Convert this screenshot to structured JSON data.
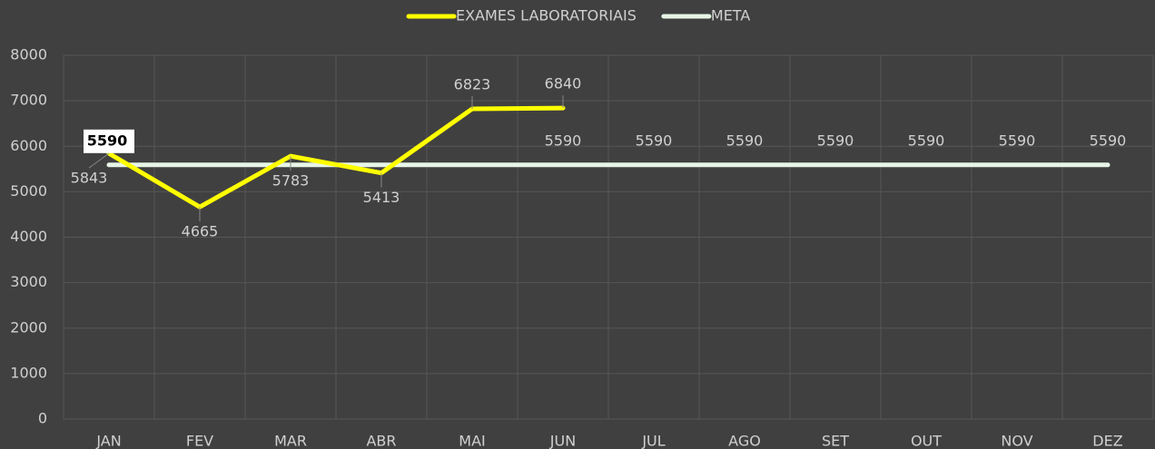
{
  "chart_data": {
    "type": "line",
    "categories": [
      "JAN",
      "FEV",
      "MAR",
      "ABR",
      "MAI",
      "JUN",
      "JUL",
      "AGO",
      "SET",
      "OUT",
      "NOV",
      "DEZ"
    ],
    "series": [
      {
        "name": "EXAMES LABORATORIAIS",
        "color": "#ffff00",
        "values": [
          5843,
          4665,
          5783,
          5413,
          6823,
          6840,
          null,
          null,
          null,
          null,
          null,
          null
        ]
      },
      {
        "name": "META",
        "color": "#e6f5e6",
        "values": [
          5590,
          5590,
          5590,
          5590,
          5590,
          5590,
          5590,
          5590,
          5590,
          5590,
          5590,
          5590
        ],
        "value_labels": [
          "5590",
          null,
          null,
          null,
          null,
          "5590",
          "5590",
          "5590",
          "5590",
          "5590",
          "5590",
          "5590"
        ]
      }
    ],
    "ylim": [
      0,
      8000
    ],
    "yticks": [
      0,
      1000,
      2000,
      3000,
      4000,
      5000,
      6000,
      7000,
      8000
    ],
    "grid": true,
    "legend": "top"
  }
}
